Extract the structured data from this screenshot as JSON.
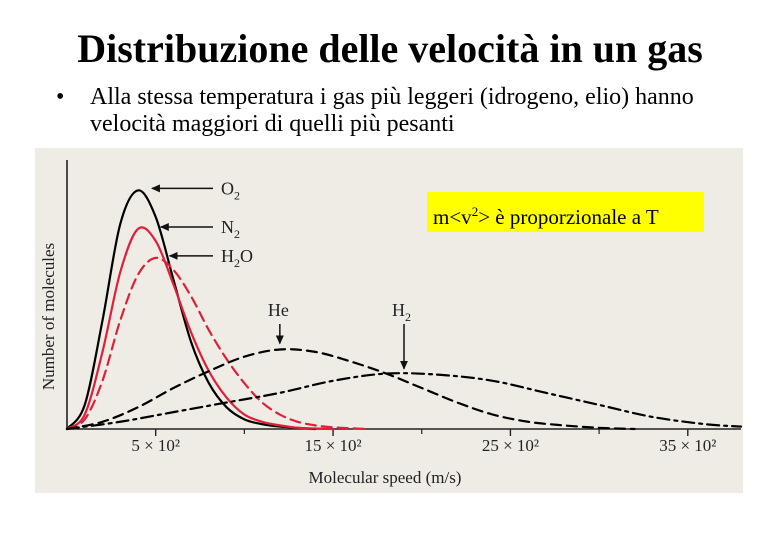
{
  "slide": {
    "title": "Distribuzione delle velocità in un gas",
    "bullet_symbol": "•",
    "bullet_text": "Alla stessa temperatura i gas più leggeri (idrogeno, elio) hanno velocità maggiori di quelli più pesanti"
  },
  "highlight_note": {
    "text_prefix": "m<v",
    "text_sup": "2",
    "text_suffix": "> è proporzionale a T",
    "background": "#ffff00"
  },
  "chart_data": {
    "type": "line",
    "title": "",
    "xlabel": "Molecular speed (m/s)",
    "ylabel": "Number of molecules",
    "xlim": [
      0,
      3800
    ],
    "ylim": [
      0,
      100
    ],
    "grid": false,
    "xticks": [
      {
        "value": 500,
        "label": "5 × 10²"
      },
      {
        "value": 1500,
        "label": "15 × 10²"
      },
      {
        "value": 2500,
        "label": "25 × 10²"
      },
      {
        "value": 3500,
        "label": "35 × 10²"
      }
    ],
    "series": [
      {
        "name": "O₂",
        "color": "#000000",
        "dash": "solid",
        "x": [
          0,
          100,
          200,
          300,
          400,
          500,
          600,
          700,
          800,
          900,
          1000,
          1100,
          1200,
          1300,
          1400
        ],
        "y": [
          0,
          10,
          45,
          85,
          99,
          88,
          62,
          36,
          19,
          9,
          4,
          2,
          1,
          0.5,
          0
        ]
      },
      {
        "name": "N₂",
        "color": "#e0203a",
        "dash": "solid",
        "x": [
          0,
          100,
          200,
          300,
          400,
          500,
          600,
          700,
          800,
          900,
          1000,
          1100,
          1200,
          1300,
          1400,
          1500
        ],
        "y": [
          0,
          6,
          32,
          65,
          83,
          78,
          60,
          40,
          24,
          13,
          6,
          3,
          1.5,
          0.5,
          0.2,
          0
        ]
      },
      {
        "name": "H₂O",
        "color": "#e0203a",
        "dash": "dashed",
        "x": [
          0,
          100,
          200,
          300,
          400,
          500,
          600,
          700,
          800,
          900,
          1000,
          1100,
          1200,
          1300,
          1400,
          1500,
          1600,
          1700
        ],
        "y": [
          0,
          4,
          20,
          45,
          64,
          71,
          66,
          55,
          41,
          29,
          19,
          11,
          6,
          3,
          1.5,
          0.7,
          0.3,
          0
        ]
      },
      {
        "name": "He",
        "color": "#000000",
        "dash": "dashed",
        "x": [
          0,
          200,
          400,
          600,
          800,
          1000,
          1200,
          1400,
          1600,
          1800,
          2000,
          2200,
          2400,
          2600,
          2800,
          3000,
          3200
        ],
        "y": [
          0,
          3,
          9,
          17,
          24,
          30,
          33,
          32,
          28,
          23,
          17,
          11,
          6,
          3,
          1.5,
          0.5,
          0
        ]
      },
      {
        "name": "H₂",
        "color": "#000000",
        "dash": "dashdot",
        "x": [
          0,
          300,
          600,
          900,
          1200,
          1500,
          1800,
          2100,
          2400,
          2700,
          3000,
          3300,
          3600,
          3800
        ],
        "y": [
          0,
          3,
          7,
          11,
          15,
          20,
          23,
          22.5,
          20,
          15,
          10,
          5,
          2,
          1
        ]
      }
    ],
    "annotations": [
      {
        "label_main": "O",
        "label_sub": "2",
        "series": "O₂",
        "peak_x": 400
      },
      {
        "label_main": "N",
        "label_sub": "2",
        "series": "N₂",
        "peak_x": 450
      },
      {
        "label_main": "H",
        "label_sub": "2",
        "label_tail": "O",
        "series": "H₂O",
        "peak_x": 500
      },
      {
        "label_main": "He",
        "series": "He",
        "peak_x": 1200
      },
      {
        "label_main": "H",
        "label_sub": "2",
        "series": "H₂",
        "peak_x": 1900
      }
    ]
  }
}
